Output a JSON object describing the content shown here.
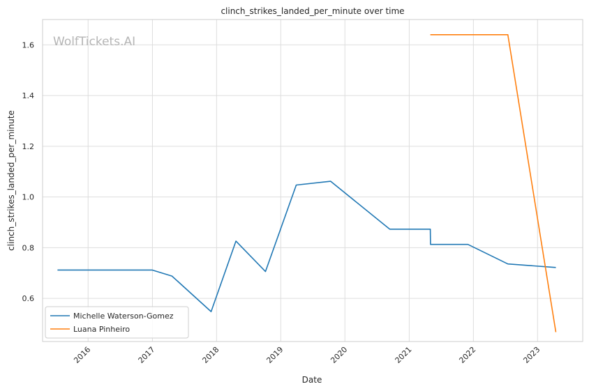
{
  "chart_data": {
    "type": "line",
    "title": "clinch_strikes_landed_per_minute over time",
    "xlabel": "Date",
    "ylabel": "clinch_strikes_landed_per_minute",
    "watermark": "WolfTickets.AI",
    "x_ticks": [
      "2016",
      "2017",
      "2018",
      "2019",
      "2020",
      "2021",
      "2022",
      "2023"
    ],
    "y_ticks": [
      "0.6",
      "0.8",
      "1.0",
      "1.2",
      "1.4",
      "1.6"
    ],
    "xlim": [
      "2015-04-17",
      "2023-09-15"
    ],
    "ylim": [
      0.43,
      1.7
    ],
    "grid": true,
    "legend_position": "lower-left",
    "series": [
      {
        "name": "Michelle Waterson-Gomez",
        "color": "#1f77b4",
        "points": [
          [
            "2015-07-11",
            0.712
          ],
          [
            "2016-12-30",
            0.712
          ],
          [
            "2017-04-22",
            0.688
          ],
          [
            "2017-12-01",
            0.548
          ],
          [
            "2018-04-21",
            0.826
          ],
          [
            "2018-10-06",
            0.706
          ],
          [
            "2019-03-30",
            1.047
          ],
          [
            "2019-10-12",
            1.062
          ],
          [
            "2020-09-12",
            0.873
          ],
          [
            "2021-05-01",
            0.873
          ],
          [
            "2021-05-02",
            0.813
          ],
          [
            "2021-12-01",
            0.813
          ],
          [
            "2022-07-16",
            0.736
          ],
          [
            "2023-04-15",
            0.722
          ]
        ]
      },
      {
        "name": "Luana Pinheiro",
        "color": "#ff7f0e",
        "points": [
          [
            "2021-05-01",
            1.64
          ],
          [
            "2022-07-16",
            1.64
          ],
          [
            "2023-04-15",
            0.467
          ]
        ]
      }
    ]
  }
}
